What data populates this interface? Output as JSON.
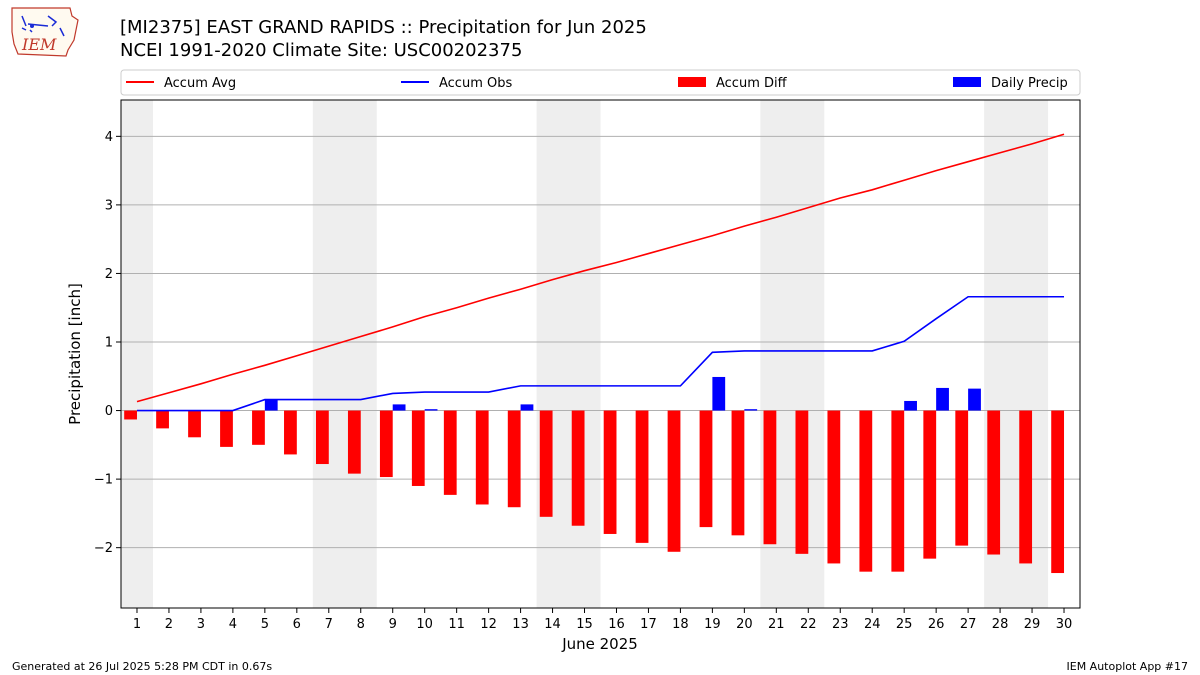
{
  "header": {
    "title_line1": "[MI2375] EAST GRAND RAPIDS :: Precipitation for Jun 2025",
    "title_line2": "NCEI 1991-2020 Climate Site: USC00202375"
  },
  "logo": {
    "text": "IEM",
    "icon": "iem-iowa-logo"
  },
  "footer": {
    "left": "Generated at 26 Jul 2025 5:28 PM CDT in 0.67s",
    "right": "IEM Autoplot App #17"
  },
  "chart_data": {
    "type": "bar",
    "xlabel": "June 2025",
    "ylabel": "Precipitation [inch]",
    "ylim": [
      -2.88,
      4.53
    ],
    "xlim": [
      0.5,
      30.5
    ],
    "yticks": [
      -2,
      -1,
      0,
      1,
      2,
      3,
      4
    ],
    "ytick_labels": [
      "−2",
      "−1",
      "0",
      "1",
      "2",
      "3",
      "4"
    ],
    "x": [
      1,
      2,
      3,
      4,
      5,
      6,
      7,
      8,
      9,
      10,
      11,
      12,
      13,
      14,
      15,
      16,
      17,
      18,
      19,
      20,
      21,
      22,
      23,
      24,
      25,
      26,
      27,
      28,
      29,
      30
    ],
    "grid": "horizontal",
    "weekend_shading": [
      [
        0.5,
        1.5
      ],
      [
        6.5,
        8.5
      ],
      [
        13.5,
        15.5
      ],
      [
        20.5,
        22.5
      ],
      [
        27.5,
        29.5
      ]
    ],
    "legend": [
      "Accum Avg",
      "Accum Obs",
      "Accum Diff",
      "Daily Precip"
    ],
    "legend_position": "top",
    "series": [
      {
        "name": "Accum Avg",
        "kind": "line",
        "color": "#ff0000",
        "values": [
          0.13,
          0.26,
          0.39,
          0.53,
          0.66,
          0.8,
          0.94,
          1.08,
          1.22,
          1.37,
          1.5,
          1.64,
          1.77,
          1.91,
          2.04,
          2.16,
          2.29,
          2.42,
          2.55,
          2.69,
          2.82,
          2.96,
          3.1,
          3.22,
          3.36,
          3.5,
          3.63,
          3.76,
          3.89,
          4.03
        ]
      },
      {
        "name": "Accum Obs",
        "kind": "line",
        "color": "#0000ff",
        "values": [
          0,
          0,
          0,
          0,
          0.16,
          0.16,
          0.16,
          0.16,
          0.25,
          0.27,
          0.27,
          0.27,
          0.36,
          0.36,
          0.36,
          0.36,
          0.36,
          0.36,
          0.85,
          0.87,
          0.87,
          0.87,
          0.87,
          0.87,
          1.01,
          1.34,
          1.66,
          1.66,
          1.66,
          1.66
        ]
      },
      {
        "name": "Accum Diff",
        "kind": "bar",
        "color": "#ff0000",
        "values": [
          -0.13,
          -0.26,
          -0.39,
          -0.53,
          -0.5,
          -0.64,
          -0.78,
          -0.92,
          -0.97,
          -1.1,
          -1.23,
          -1.37,
          -1.41,
          -1.55,
          -1.68,
          -1.8,
          -1.93,
          -2.06,
          -1.7,
          -1.82,
          -1.95,
          -2.09,
          -2.23,
          -2.35,
          -2.35,
          -2.16,
          -1.97,
          -2.1,
          -2.23,
          -2.37
        ]
      },
      {
        "name": "Daily Precip",
        "kind": "bar",
        "color": "#0000ff",
        "values": [
          0,
          0,
          0,
          0,
          0.16,
          0,
          0,
          0,
          0.09,
          0.02,
          0,
          0,
          0.09,
          0,
          0,
          0,
          0,
          0,
          0.49,
          0.02,
          0,
          0,
          0,
          0,
          0.14,
          0.33,
          0.32,
          0,
          0,
          0
        ]
      }
    ]
  }
}
